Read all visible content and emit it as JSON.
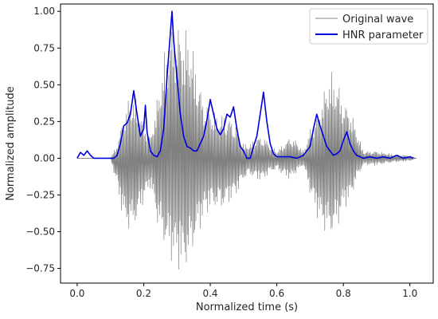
{
  "chart_data": {
    "type": "line",
    "title": "",
    "xlabel": "Normalized time (s)",
    "ylabel": "Normalized amplitude",
    "xlim": [
      -0.05,
      1.07
    ],
    "ylim": [
      -0.85,
      1.05
    ],
    "x_ticks": [
      0.0,
      0.2,
      0.4,
      0.6,
      0.8,
      1.0
    ],
    "x_tick_labels": [
      "0.0",
      "0.2",
      "0.4",
      "0.6",
      "0.8",
      "1.0"
    ],
    "y_ticks": [
      -0.75,
      -0.5,
      -0.25,
      0.0,
      0.25,
      0.5,
      0.75,
      1.0
    ],
    "y_tick_labels": [
      "−0.75",
      "−0.50",
      "−0.25",
      "0.00",
      "0.25",
      "0.50",
      "0.75",
      "1.00"
    ],
    "grid": false,
    "legend_position": "top-right",
    "series": [
      {
        "name": "Original wave",
        "color": "#808080",
        "style": "oscillating waveform",
        "envelope": {
          "x": [
            0.0,
            0.1,
            0.12,
            0.14,
            0.16,
            0.18,
            0.2,
            0.22,
            0.24,
            0.26,
            0.28,
            0.3,
            0.32,
            0.34,
            0.36,
            0.38,
            0.4,
            0.42,
            0.44,
            0.46,
            0.48,
            0.5,
            0.52,
            0.54,
            0.56,
            0.58,
            0.6,
            0.62,
            0.64,
            0.66,
            0.68,
            0.7,
            0.72,
            0.74,
            0.76,
            0.78,
            0.8,
            0.82,
            0.84,
            0.86,
            0.88,
            0.9,
            0.95,
            1.0,
            1.02
          ],
          "upper": [
            0.0,
            0.0,
            0.1,
            0.3,
            0.45,
            0.4,
            0.25,
            0.15,
            0.4,
            0.7,
            0.9,
            0.95,
            0.9,
            0.85,
            0.6,
            0.4,
            0.35,
            0.3,
            0.3,
            0.28,
            0.22,
            0.1,
            0.1,
            0.15,
            0.15,
            0.1,
            0.05,
            0.1,
            0.15,
            0.12,
            0.05,
            0.2,
            0.3,
            0.45,
            0.6,
            0.55,
            0.4,
            0.35,
            0.2,
            0.05,
            0.05,
            0.05,
            0.03,
            0.02,
            0.0
          ],
          "lower": [
            0.0,
            0.0,
            -0.2,
            -0.45,
            -0.52,
            -0.45,
            -0.3,
            -0.2,
            -0.45,
            -0.6,
            -0.7,
            -0.75,
            -0.8,
            -0.7,
            -0.55,
            -0.42,
            -0.35,
            -0.35,
            -0.35,
            -0.3,
            -0.25,
            -0.15,
            -0.12,
            -0.15,
            -0.15,
            -0.1,
            -0.08,
            -0.12,
            -0.15,
            -0.1,
            -0.05,
            -0.25,
            -0.4,
            -0.5,
            -0.55,
            -0.5,
            -0.35,
            -0.3,
            -0.15,
            -0.05,
            -0.05,
            -0.05,
            -0.03,
            -0.02,
            0.0
          ]
        }
      },
      {
        "name": "HNR parameter",
        "color": "#0000dd",
        "x": [
          0.0,
          0.01,
          0.02,
          0.03,
          0.04,
          0.05,
          0.06,
          0.08,
          0.1,
          0.11,
          0.12,
          0.13,
          0.14,
          0.15,
          0.16,
          0.17,
          0.18,
          0.19,
          0.2,
          0.205,
          0.21,
          0.22,
          0.23,
          0.24,
          0.25,
          0.26,
          0.27,
          0.28,
          0.285,
          0.29,
          0.3,
          0.31,
          0.32,
          0.33,
          0.34,
          0.35,
          0.36,
          0.37,
          0.38,
          0.39,
          0.4,
          0.41,
          0.42,
          0.43,
          0.44,
          0.45,
          0.46,
          0.47,
          0.48,
          0.49,
          0.5,
          0.51,
          0.52,
          0.53,
          0.54,
          0.55,
          0.56,
          0.57,
          0.58,
          0.59,
          0.6,
          0.62,
          0.64,
          0.66,
          0.68,
          0.7,
          0.71,
          0.72,
          0.73,
          0.74,
          0.75,
          0.76,
          0.77,
          0.78,
          0.79,
          0.8,
          0.81,
          0.82,
          0.83,
          0.84,
          0.86,
          0.88,
          0.9,
          0.92,
          0.94,
          0.96,
          0.98,
          1.0,
          1.01
        ],
        "y": [
          0.0,
          0.04,
          0.02,
          0.05,
          0.02,
          0.0,
          0.0,
          0.0,
          0.0,
          0.0,
          0.02,
          0.1,
          0.22,
          0.24,
          0.3,
          0.46,
          0.3,
          0.15,
          0.2,
          0.36,
          0.18,
          0.05,
          0.02,
          0.01,
          0.05,
          0.2,
          0.55,
          0.85,
          1.0,
          0.8,
          0.55,
          0.3,
          0.15,
          0.08,
          0.07,
          0.05,
          0.05,
          0.1,
          0.15,
          0.26,
          0.4,
          0.3,
          0.2,
          0.16,
          0.2,
          0.3,
          0.28,
          0.35,
          0.2,
          0.08,
          0.05,
          0.0,
          0.0,
          0.08,
          0.15,
          0.3,
          0.45,
          0.25,
          0.1,
          0.03,
          0.01,
          0.01,
          0.01,
          0.0,
          0.02,
          0.08,
          0.2,
          0.3,
          0.22,
          0.15,
          0.08,
          0.05,
          0.02,
          0.03,
          0.05,
          0.12,
          0.18,
          0.1,
          0.05,
          0.02,
          0.0,
          0.01,
          0.0,
          0.01,
          0.0,
          0.02,
          0.0,
          0.01,
          0.0
        ]
      }
    ]
  }
}
